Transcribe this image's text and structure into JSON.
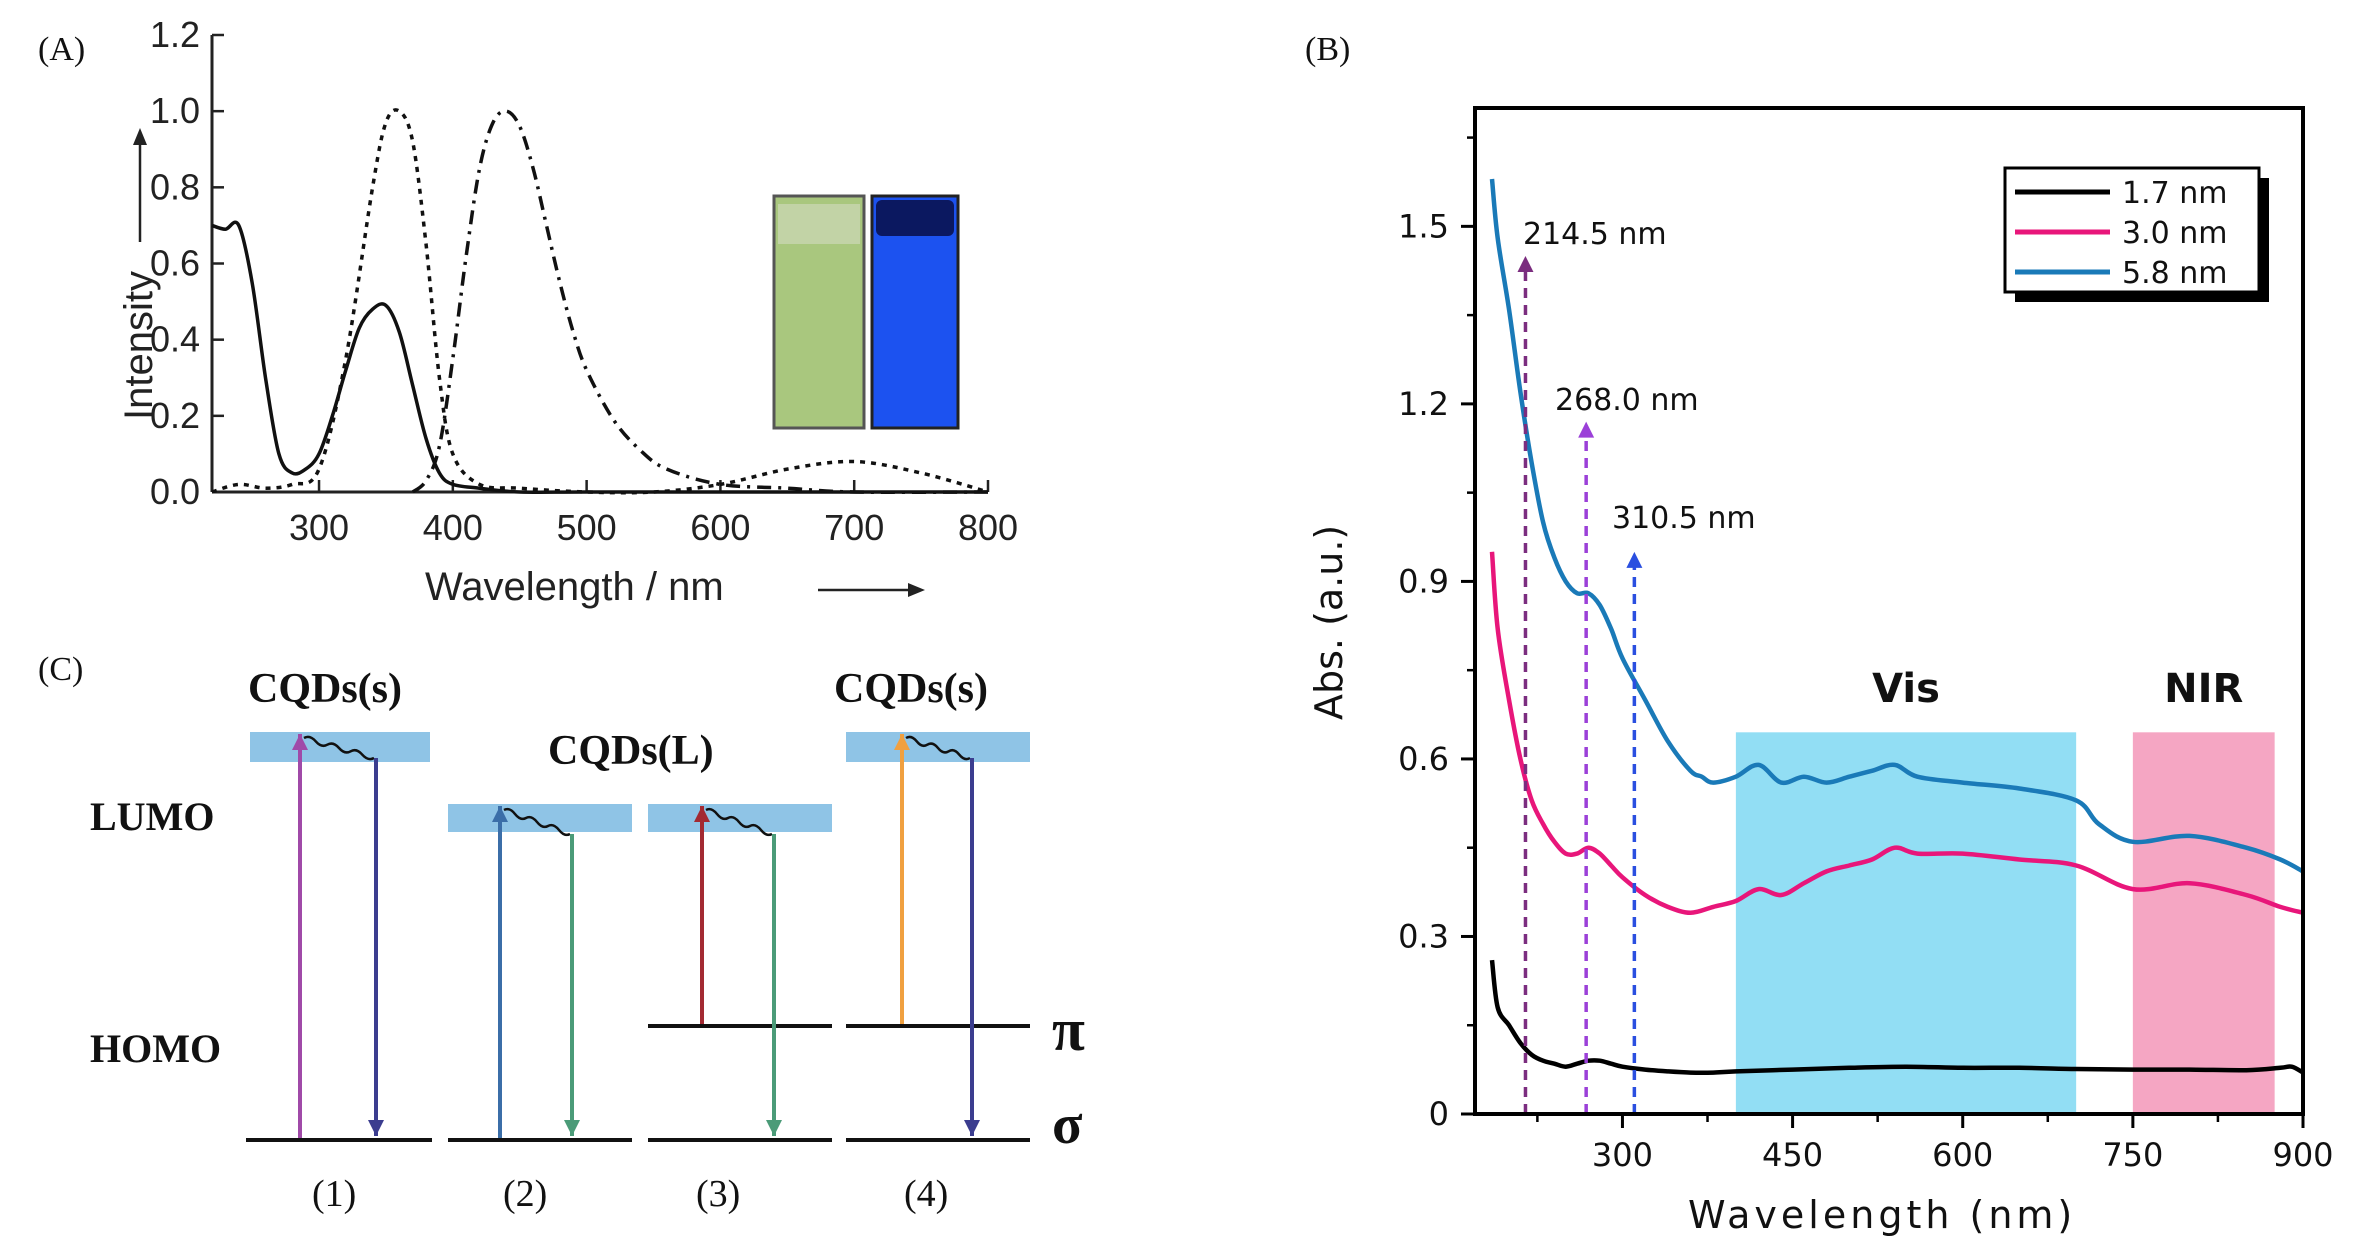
{
  "panels": {
    "a_label": "(A)",
    "b_label": "(B)",
    "c_label": "(C)"
  },
  "chart_data": [
    {
      "panel": "A",
      "type": "line",
      "title": "",
      "xlabel": "Wavelength / nm",
      "ylabel": "Intensity",
      "xlim": [
        220,
        800
      ],
      "ylim": [
        0,
        1.2
      ],
      "xticks": [
        "300",
        "400",
        "500",
        "600",
        "700",
        "800"
      ],
      "yticks": [
        "0.0",
        "0.2",
        "0.4",
        "0.6",
        "0.8",
        "1.0",
        "1.2"
      ],
      "series": [
        {
          "style": "solid",
          "x": [
            220,
            230,
            240,
            250,
            260,
            270,
            280,
            290,
            300,
            310,
            320,
            330,
            340,
            350,
            360,
            370,
            380,
            390,
            400,
            420,
            450,
            500,
            600,
            700,
            800
          ],
          "y": [
            0.7,
            0.69,
            0.7,
            0.55,
            0.3,
            0.1,
            0.05,
            0.06,
            0.1,
            0.2,
            0.32,
            0.43,
            0.48,
            0.49,
            0.42,
            0.28,
            0.14,
            0.05,
            0.02,
            0.01,
            0.0,
            0.0,
            0.0,
            0.0,
            0.0
          ]
        },
        {
          "style": "dotted",
          "x": [
            220,
            240,
            260,
            280,
            300,
            320,
            340,
            350,
            360,
            370,
            380,
            390,
            400,
            420,
            450,
            500,
            550,
            600,
            650,
            700,
            750,
            800
          ],
          "y": [
            0.0,
            0.02,
            0.01,
            0.02,
            0.06,
            0.35,
            0.8,
            0.97,
            1.0,
            0.92,
            0.65,
            0.3,
            0.1,
            0.02,
            0.01,
            0.0,
            0.0,
            0.02,
            0.06,
            0.08,
            0.05,
            0.0
          ]
        },
        {
          "style": "dashdot",
          "x": [
            370,
            380,
            390,
            400,
            410,
            420,
            430,
            440,
            450,
            460,
            470,
            480,
            490,
            500,
            520,
            540,
            560,
            600,
            650,
            700,
            800
          ],
          "y": [
            0.0,
            0.03,
            0.12,
            0.35,
            0.62,
            0.85,
            0.97,
            1.0,
            0.96,
            0.85,
            0.7,
            0.55,
            0.42,
            0.32,
            0.19,
            0.11,
            0.06,
            0.02,
            0.01,
            0.0,
            0.0
          ]
        }
      ]
    },
    {
      "panel": "B",
      "type": "line",
      "title": "",
      "xlabel": "Wavelength (nm)",
      "ylabel": "Abs. (a.u.)",
      "xlim": [
        170,
        900
      ],
      "ylim": [
        0,
        1.7
      ],
      "xticks": [
        "300",
        "450",
        "600",
        "750",
        "900"
      ],
      "yticks": [
        "0",
        "0.3",
        "0.6",
        "0.9",
        "1.2",
        "1.5"
      ],
      "legend": "top-right",
      "series": [
        {
          "name": "1.7 nm",
          "color": "#000000",
          "x": [
            185,
            190,
            200,
            210,
            220,
            230,
            240,
            250,
            260,
            270,
            280,
            290,
            300,
            320,
            340,
            360,
            380,
            400,
            450,
            500,
            550,
            600,
            650,
            700,
            750,
            800,
            850,
            880,
            890,
            900
          ],
          "y": [
            0.26,
            0.18,
            0.15,
            0.12,
            0.1,
            0.09,
            0.085,
            0.08,
            0.085,
            0.09,
            0.09,
            0.085,
            0.08,
            0.075,
            0.072,
            0.07,
            0.07,
            0.072,
            0.075,
            0.078,
            0.08,
            0.078,
            0.078,
            0.076,
            0.075,
            0.075,
            0.074,
            0.078,
            0.08,
            0.07
          ]
        },
        {
          "name": "3.0 nm",
          "color": "#e8167a",
          "x": [
            185,
            190,
            200,
            210,
            220,
            230,
            240,
            250,
            260,
            270,
            280,
            290,
            300,
            320,
            340,
            360,
            380,
            400,
            420,
            440,
            460,
            480,
            500,
            520,
            540,
            560,
            600,
            650,
            700,
            750,
            800,
            850,
            880,
            900
          ],
          "y": [
            0.95,
            0.82,
            0.7,
            0.6,
            0.53,
            0.49,
            0.46,
            0.44,
            0.44,
            0.45,
            0.44,
            0.42,
            0.4,
            0.37,
            0.35,
            0.34,
            0.35,
            0.36,
            0.38,
            0.37,
            0.39,
            0.41,
            0.42,
            0.43,
            0.45,
            0.44,
            0.44,
            0.43,
            0.42,
            0.38,
            0.39,
            0.37,
            0.35,
            0.34
          ]
        },
        {
          "name": "5.8 nm",
          "color": "#1a7ab8",
          "x": [
            185,
            190,
            200,
            210,
            220,
            230,
            240,
            250,
            260,
            270,
            280,
            290,
            300,
            320,
            340,
            360,
            370,
            380,
            400,
            420,
            440,
            460,
            480,
            500,
            520,
            540,
            560,
            600,
            650,
            700,
            720,
            750,
            800,
            850,
            880,
            900
          ],
          "y": [
            1.58,
            1.48,
            1.36,
            1.22,
            1.1,
            1.0,
            0.94,
            0.9,
            0.88,
            0.88,
            0.86,
            0.82,
            0.77,
            0.7,
            0.63,
            0.58,
            0.57,
            0.56,
            0.57,
            0.59,
            0.56,
            0.57,
            0.56,
            0.57,
            0.58,
            0.59,
            0.57,
            0.56,
            0.55,
            0.53,
            0.49,
            0.46,
            0.47,
            0.45,
            0.43,
            0.41
          ]
        }
      ],
      "regions": [
        {
          "label": "Vis",
          "x0": 400,
          "x1": 700,
          "y1": 0.645,
          "color": "#7fd8f2"
        },
        {
          "label": "NIR",
          "x0": 750,
          "x1": 875,
          "y1": 0.645,
          "color": "#f396b8"
        }
      ],
      "markers": [
        {
          "label": "214.5 nm",
          "x": 214.5,
          "y": 1.45,
          "color": "#7b2d7f"
        },
        {
          "label": "268.0 nm",
          "x": 268.0,
          "y": 1.17,
          "color": "#9b40d8"
        },
        {
          "label": "310.5 nm",
          "x": 310.5,
          "y": 0.95,
          "color": "#2a4fe0"
        }
      ]
    }
  ],
  "diagram_c": {
    "top_left": "CQDs(s)",
    "top_middle": "CQDs(L)",
    "top_right": "CQDs(s)",
    "lumo": "LUMO",
    "homo": "HOMO",
    "pi": "π",
    "sigma": "σ",
    "cases": [
      "(1)",
      "(2)",
      "(3)",
      "(4)"
    ],
    "colors": {
      "band": "#8fc4e6",
      "purple": "#a04aa8",
      "indigo": "#3b3d8f",
      "blue": "#3b6ea8",
      "green": "#4b9b78",
      "red": "#a32a32",
      "orange": "#f0a040"
    }
  }
}
